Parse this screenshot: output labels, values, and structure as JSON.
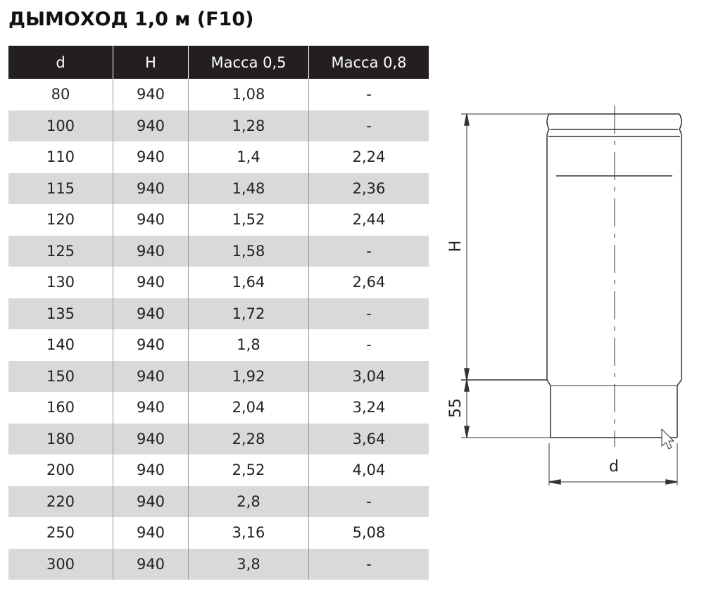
{
  "header": {
    "title": "ДЫМОХОД 1,0 м (F10)"
  },
  "table": {
    "columns": [
      "d",
      "H",
      "Масса 0,5",
      "Масса 0,8"
    ],
    "rows": [
      [
        "80",
        "940",
        "1,08",
        "-"
      ],
      [
        "100",
        "940",
        "1,28",
        "-"
      ],
      [
        "110",
        "940",
        "1,4",
        "2,24"
      ],
      [
        "115",
        "940",
        "1,48",
        "2,36"
      ],
      [
        "120",
        "940",
        "1,52",
        "2,44"
      ],
      [
        "125",
        "940",
        "1,58",
        "-"
      ],
      [
        "130",
        "940",
        "1,64",
        "2,64"
      ],
      [
        "135",
        "940",
        "1,72",
        "-"
      ],
      [
        "140",
        "940",
        "1,8",
        "-"
      ],
      [
        "150",
        "940",
        "1,92",
        "3,04"
      ],
      [
        "160",
        "940",
        "2,04",
        "3,24"
      ],
      [
        "180",
        "940",
        "2,28",
        "3,64"
      ],
      [
        "200",
        "940",
        "2,52",
        "4,04"
      ],
      [
        "220",
        "940",
        "2,8",
        "-"
      ],
      [
        "250",
        "940",
        "3,16",
        "5,08"
      ],
      [
        "300",
        "940",
        "3,8",
        "-"
      ]
    ]
  },
  "drawing": {
    "height_label": "H",
    "socket_label": "55",
    "diameter_label": "d"
  }
}
